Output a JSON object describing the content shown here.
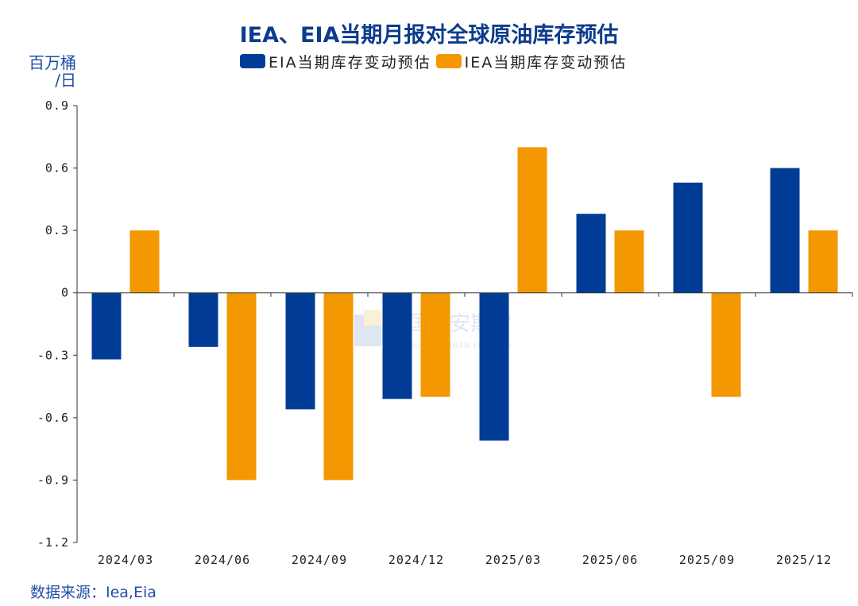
{
  "chart_data": {
    "type": "bar",
    "title": "IEA、EIA当期月报对全球原油库存预估",
    "ylabel": "百万桶/日",
    "y_unit_lines": [
      "百万桶",
      "/日"
    ],
    "source": "数据来源：Iea,Eia",
    "categories": [
      "2024/03",
      "2024/06",
      "2024/09",
      "2024/12",
      "2025/03",
      "2025/06",
      "2025/09",
      "2025/12"
    ],
    "series": [
      {
        "name": "EIA当期库存变动预估",
        "color": "#003c96",
        "values": [
          -0.32,
          -0.26,
          -0.56,
          -0.51,
          -0.71,
          0.38,
          0.53,
          0.6
        ]
      },
      {
        "name": "IEA当期库存变动预估",
        "color": "#f39800",
        "values": [
          0.3,
          -0.9,
          -0.9,
          -0.5,
          0.7,
          0.3,
          -0.5,
          0.3
        ]
      }
    ],
    "ylim": [
      -1.2,
      0.9
    ],
    "yticks": [
      "0.9",
      "0.6",
      "0.3",
      "0",
      "-0.3",
      "-0.6",
      "-0.9",
      "-1.2"
    ],
    "grid": false,
    "legend_position": "top-center"
  },
  "watermark": {
    "text_cn": "国泰安期货",
    "text_en": "GUOTAI JUNAN FUTURES"
  }
}
